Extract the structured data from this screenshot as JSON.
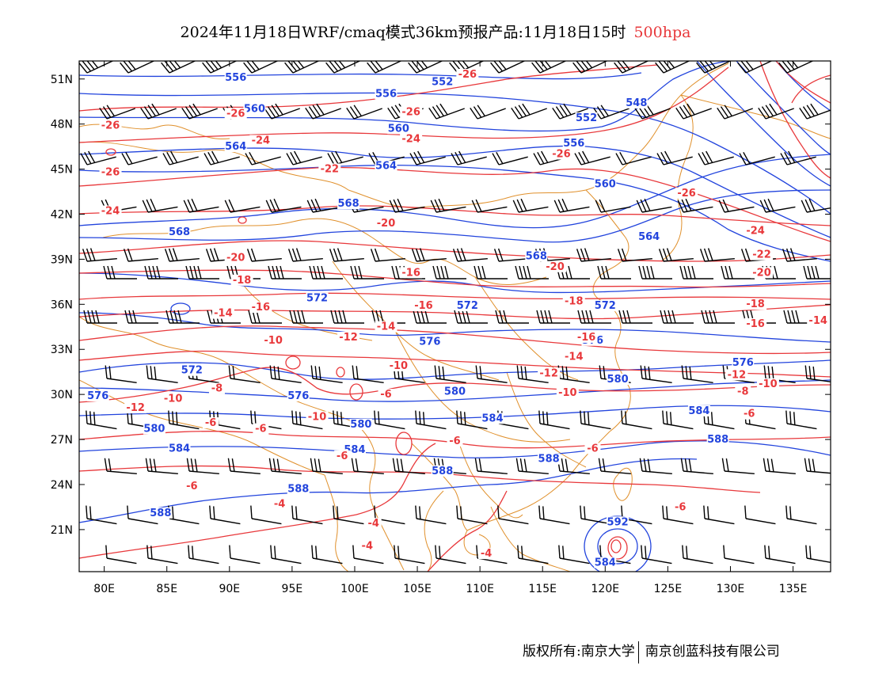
{
  "title": {
    "main": "2024年11月18日WRF/cmaq模式36km预报产品:11月18日15时",
    "level": "500hpa"
  },
  "footer": {
    "copyright": "版权所有:南京大学",
    "company": "南京创蓝科技有限公司"
  },
  "colors": {
    "height_contour": "#2244dd",
    "temperature_contour": "#e8383b",
    "coastline_border": "#e0902c",
    "wind_barb": "#000000"
  },
  "chart_data": {
    "type": "map",
    "xticks": [
      "80E",
      "85E",
      "90E",
      "95E",
      "100E",
      "105E",
      "110E",
      "115E",
      "120E",
      "125E",
      "130E",
      "135E"
    ],
    "xtick_values": [
      80,
      85,
      90,
      95,
      100,
      105,
      110,
      115,
      120,
      125,
      130,
      135
    ],
    "yticks": [
      "21N",
      "24N",
      "27N",
      "30N",
      "33N",
      "36N",
      "39N",
      "42N",
      "45N",
      "48N",
      "51N"
    ],
    "ytick_values": [
      21,
      24,
      27,
      30,
      33,
      36,
      39,
      42,
      45,
      48,
      51
    ],
    "xlim": [
      78,
      138
    ],
    "ylim": [
      18.2,
      52.2
    ],
    "height_labels": [
      {
        "text": "556",
        "lon": 90.5,
        "lat": 51.0
      },
      {
        "text": "552",
        "lon": 107.0,
        "lat": 50.7
      },
      {
        "text": "556",
        "lon": 102.5,
        "lat": 49.9
      },
      {
        "text": "560",
        "lon": 92.0,
        "lat": 48.9
      },
      {
        "text": "548",
        "lon": 122.5,
        "lat": 49.3
      },
      {
        "text": "552",
        "lon": 118.5,
        "lat": 48.3
      },
      {
        "text": "560",
        "lon": 103.5,
        "lat": 47.6
      },
      {
        "text": "564",
        "lon": 90.5,
        "lat": 46.4
      },
      {
        "text": "556",
        "lon": 117.5,
        "lat": 46.6
      },
      {
        "text": "564",
        "lon": 102.5,
        "lat": 45.1
      },
      {
        "text": "560",
        "lon": 120.0,
        "lat": 43.9
      },
      {
        "text": "568",
        "lon": 99.5,
        "lat": 42.6
      },
      {
        "text": "568",
        "lon": 86.0,
        "lat": 40.7
      },
      {
        "text": "568",
        "lon": 114.5,
        "lat": 39.1
      },
      {
        "text": "564",
        "lon": 123.5,
        "lat": 40.4
      },
      {
        "text": "572",
        "lon": 97.0,
        "lat": 36.3
      },
      {
        "text": "572",
        "lon": 109.0,
        "lat": 35.8
      },
      {
        "text": "572",
        "lon": 120.0,
        "lat": 35.8
      },
      {
        "text": "576",
        "lon": 106.0,
        "lat": 33.4
      },
      {
        "text": "576",
        "lon": 119.0,
        "lat": 33.5
      },
      {
        "text": "576",
        "lon": 131.0,
        "lat": 32.0
      },
      {
        "text": "572",
        "lon": 87.0,
        "lat": 31.5
      },
      {
        "text": "580",
        "lon": 121.0,
        "lat": 30.9
      },
      {
        "text": "580",
        "lon": 108.0,
        "lat": 30.1
      },
      {
        "text": "576",
        "lon": 95.5,
        "lat": 29.8
      },
      {
        "text": "576",
        "lon": 79.5,
        "lat": 29.8
      },
      {
        "text": "584",
        "lon": 111.0,
        "lat": 28.3
      },
      {
        "text": "584",
        "lon": 127.5,
        "lat": 28.8
      },
      {
        "text": "580",
        "lon": 100.5,
        "lat": 27.9
      },
      {
        "text": "580",
        "lon": 84.0,
        "lat": 27.6
      },
      {
        "text": "584",
        "lon": 86.0,
        "lat": 26.3
      },
      {
        "text": "584",
        "lon": 100.0,
        "lat": 26.2
      },
      {
        "text": "588",
        "lon": 129.0,
        "lat": 26.9
      },
      {
        "text": "588",
        "lon": 107.0,
        "lat": 24.8
      },
      {
        "text": "588",
        "lon": 115.5,
        "lat": 25.6
      },
      {
        "text": "588",
        "lon": 95.5,
        "lat": 23.6
      },
      {
        "text": "588",
        "lon": 84.5,
        "lat": 22.0
      },
      {
        "text": "592",
        "lon": 121.0,
        "lat": 21.4
      },
      {
        "text": "584",
        "lon": 120.0,
        "lat": 18.7
      }
    ],
    "temperature_labels": [
      {
        "text": "-26",
        "lon": 109.0,
        "lat": 51.2
      },
      {
        "text": "-26",
        "lon": 90.5,
        "lat": 48.6
      },
      {
        "text": "-26",
        "lon": 104.5,
        "lat": 48.7
      },
      {
        "text": "-26",
        "lon": 80.5,
        "lat": 47.8
      },
      {
        "text": "-24",
        "lon": 92.5,
        "lat": 46.8
      },
      {
        "text": "-24",
        "lon": 104.5,
        "lat": 46.9
      },
      {
        "text": "-26",
        "lon": 116.5,
        "lat": 45.9
      },
      {
        "text": "-26",
        "lon": 80.5,
        "lat": 44.7
      },
      {
        "text": "-22",
        "lon": 98.0,
        "lat": 44.9
      },
      {
        "text": "-24",
        "lon": 80.5,
        "lat": 42.1
      },
      {
        "text": "-26",
        "lon": 126.5,
        "lat": 43.3
      },
      {
        "text": "-20",
        "lon": 102.5,
        "lat": 41.3
      },
      {
        "text": "-24",
        "lon": 132.0,
        "lat": 40.8
      },
      {
        "text": "-22",
        "lon": 132.5,
        "lat": 39.2
      },
      {
        "text": "-20",
        "lon": 90.5,
        "lat": 39.0
      },
      {
        "text": "-20",
        "lon": 116.0,
        "lat": 38.4
      },
      {
        "text": "-20",
        "lon": 132.5,
        "lat": 38.0
      },
      {
        "text": "-16",
        "lon": 104.5,
        "lat": 38.0
      },
      {
        "text": "-18",
        "lon": 91.0,
        "lat": 37.5
      },
      {
        "text": "-18",
        "lon": 117.5,
        "lat": 36.1
      },
      {
        "text": "-18",
        "lon": 132.0,
        "lat": 35.9
      },
      {
        "text": "-16",
        "lon": 105.5,
        "lat": 35.8
      },
      {
        "text": "-16",
        "lon": 92.5,
        "lat": 35.7
      },
      {
        "text": "-14",
        "lon": 89.5,
        "lat": 35.3
      },
      {
        "text": "-16",
        "lon": 132.0,
        "lat": 34.6
      },
      {
        "text": "-14",
        "lon": 137.0,
        "lat": 34.8
      },
      {
        "text": "-14",
        "lon": 102.5,
        "lat": 34.4
      },
      {
        "text": "-12",
        "lon": 99.5,
        "lat": 33.7
      },
      {
        "text": "-16",
        "lon": 118.5,
        "lat": 33.7
      },
      {
        "text": "-10",
        "lon": 93.5,
        "lat": 33.5
      },
      {
        "text": "-14",
        "lon": 117.5,
        "lat": 32.4
      },
      {
        "text": "-10",
        "lon": 103.5,
        "lat": 31.8
      },
      {
        "text": "-12",
        "lon": 115.5,
        "lat": 31.3
      },
      {
        "text": "-12",
        "lon": 130.5,
        "lat": 31.2
      },
      {
        "text": "-10",
        "lon": 133.0,
        "lat": 30.6
      },
      {
        "text": "-8",
        "lon": 89.0,
        "lat": 30.3
      },
      {
        "text": "-8",
        "lon": 131.0,
        "lat": 30.1
      },
      {
        "text": "-10",
        "lon": 117.0,
        "lat": 30.0
      },
      {
        "text": "-6",
        "lon": 102.5,
        "lat": 29.9
      },
      {
        "text": "-10",
        "lon": 85.5,
        "lat": 29.6
      },
      {
        "text": "-12",
        "lon": 82.5,
        "lat": 29.0
      },
      {
        "text": "-10",
        "lon": 97.0,
        "lat": 28.4
      },
      {
        "text": "-6",
        "lon": 88.5,
        "lat": 28.0
      },
      {
        "text": "-6",
        "lon": 131.5,
        "lat": 28.6
      },
      {
        "text": "-6",
        "lon": 92.5,
        "lat": 27.6
      },
      {
        "text": "-6",
        "lon": 108.0,
        "lat": 26.8
      },
      {
        "text": "-6",
        "lon": 99.0,
        "lat": 25.8
      },
      {
        "text": "-6",
        "lon": 119.0,
        "lat": 26.3
      },
      {
        "text": "-6",
        "lon": 87.0,
        "lat": 23.8
      },
      {
        "text": "-4",
        "lon": 94.0,
        "lat": 22.6
      },
      {
        "text": "-6",
        "lon": 126.0,
        "lat": 22.4
      },
      {
        "text": "-4",
        "lon": 101.5,
        "lat": 21.3
      },
      {
        "text": "-4",
        "lon": 101.0,
        "lat": 19.8
      },
      {
        "text": "-4",
        "lon": 110.5,
        "lat": 19.3
      }
    ]
  }
}
